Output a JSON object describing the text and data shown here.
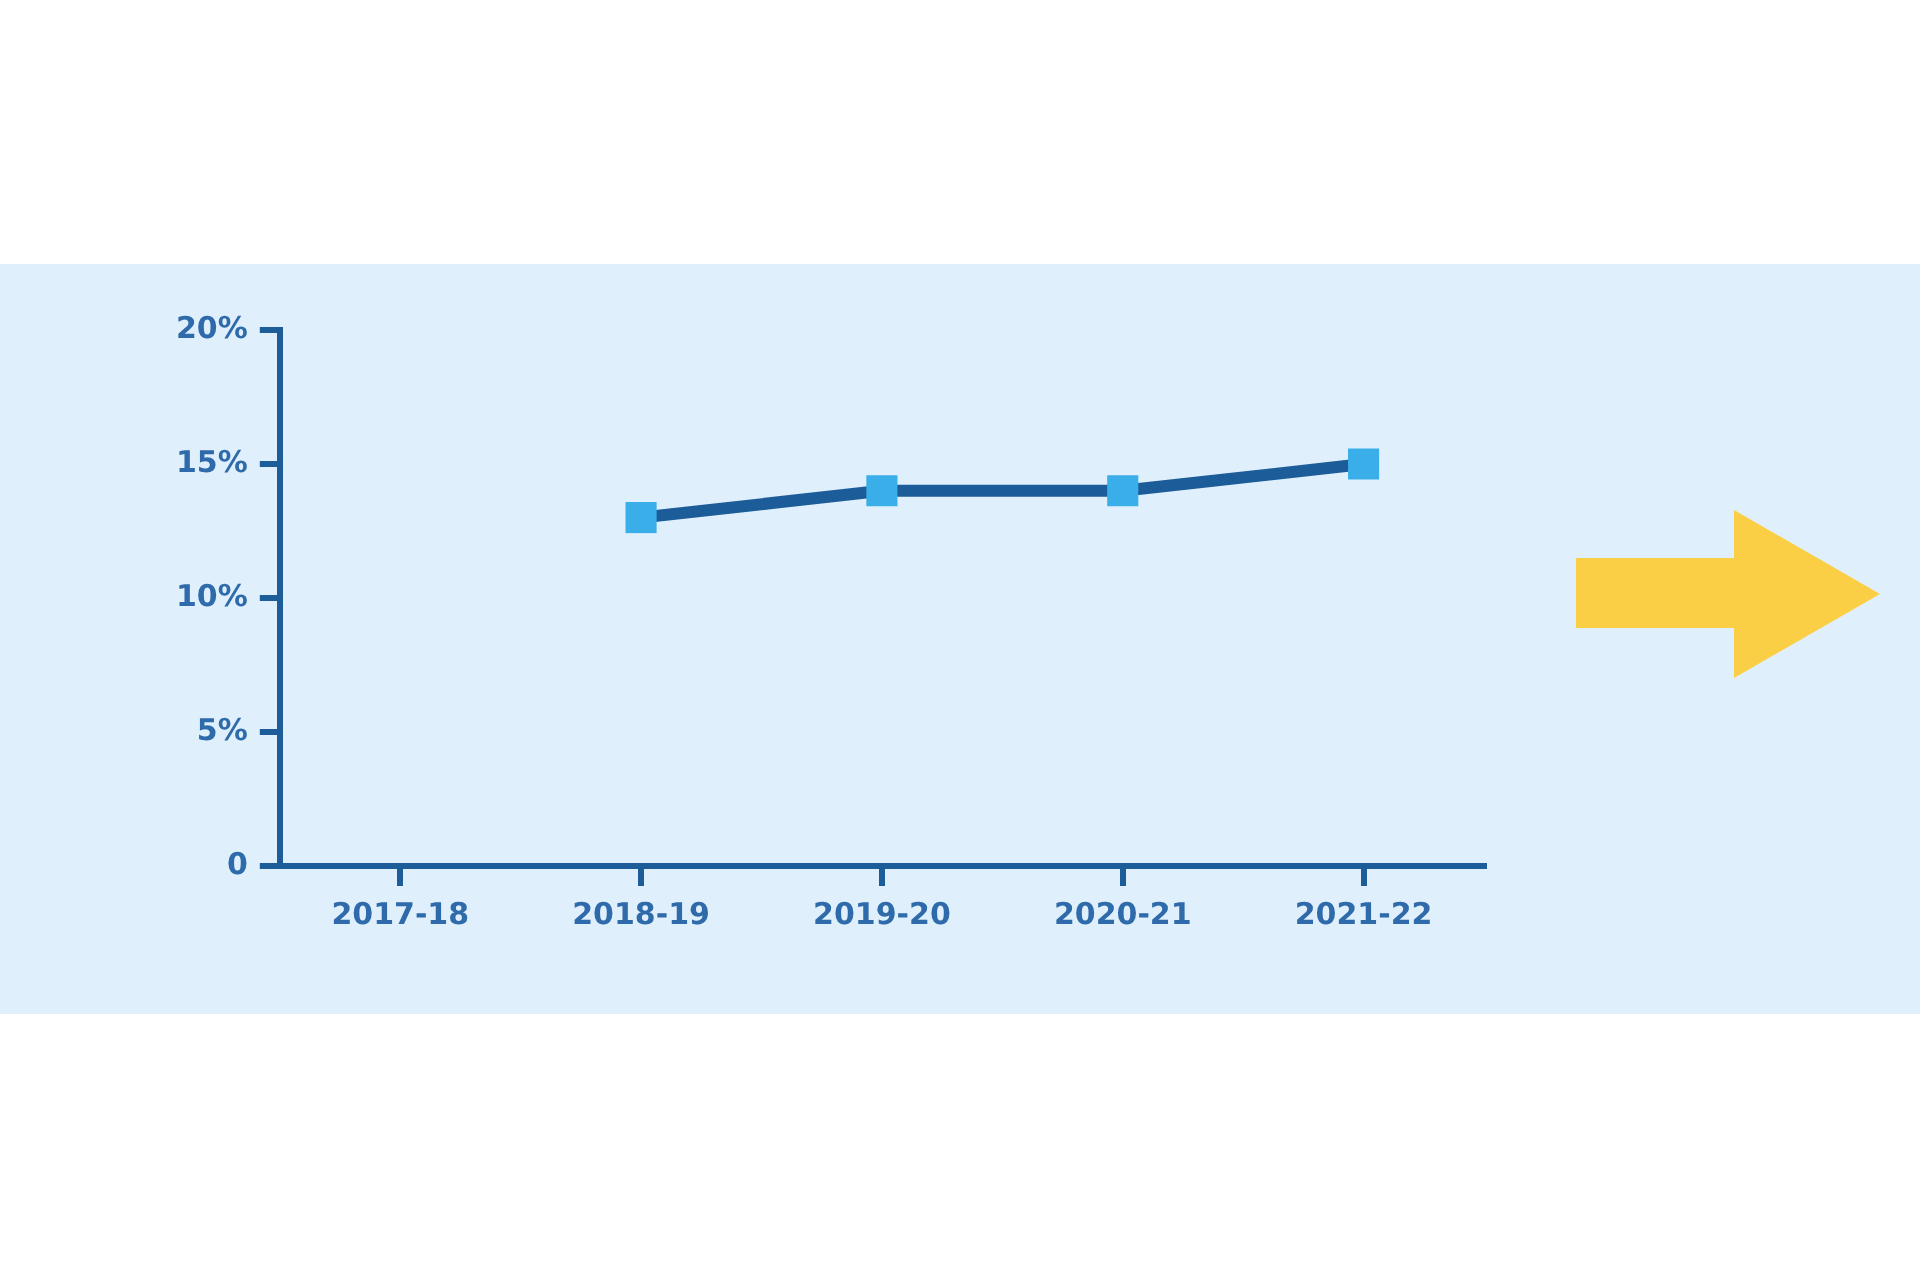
{
  "chart_data": {
    "type": "line",
    "categories": [
      "2017-18",
      "2018-19",
      "2019-20",
      "2020-21",
      "2021-22"
    ],
    "series": [
      {
        "color": "#1b5c99",
        "colors": [
          "#3aaee8",
          "#3aaee8",
          "#3aaee8",
          "#3aaee8",
          "#3aaee8"
        ],
        "values": [
          null,
          13,
          14,
          14,
          15
        ]
      }
    ],
    "ylim": [
      0,
      20
    ],
    "yticks": [
      0,
      {
        "value": 5,
        "label": "5%"
      },
      {
        "value": 10,
        "label": "10%"
      },
      {
        "value": 15,
        "label": "15%"
      },
      {
        "value": 20,
        "label": "20%"
      }
    ],
    "marker": "square",
    "line_style": "solid"
  }
}
